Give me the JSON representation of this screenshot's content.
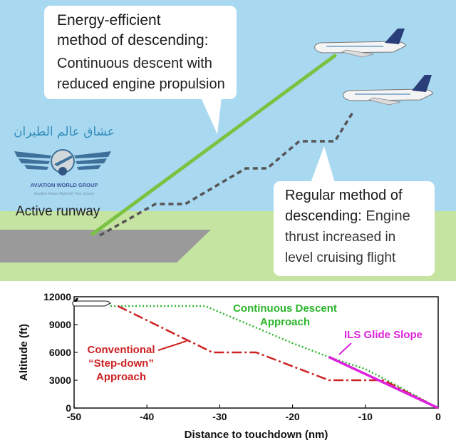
{
  "illustration": {
    "callout_efficient": {
      "line1": "Energy-efficient",
      "line2": "method of descending:",
      "line3": "Continuous descent with",
      "line4": "reduced engine propulsion"
    },
    "callout_regular": {
      "line1": "Regular method of",
      "line2_bold": "descending:",
      "line2_rest": " Engine",
      "line3": "thrust increased in",
      "line4": "level cruising flight"
    },
    "runway_label": "Active runway",
    "watermark": {
      "arabic": "عشاق عالم الطيران",
      "group": "AVIATION WORLD GROUP",
      "tagline": "Aviation Means Right On Your Screen"
    },
    "colors": {
      "sky": "#a9d8f1",
      "grass": "#c5e3a1",
      "runway": "#9a9a9a",
      "efficient_line": "#7cc242",
      "regular_line": "#555555"
    }
  },
  "chart_data": {
    "type": "line",
    "xlabel": "Distance to touchdown (nm)",
    "ylabel": "Altitude (ft)",
    "xlim": [
      -50,
      0
    ],
    "ylim": [
      0,
      12000
    ],
    "xticks": [
      {
        "v": -50,
        "label": "-50"
      },
      {
        "v": -40,
        "label": "-40"
      },
      {
        "v": -30,
        "label": "-30"
      },
      {
        "v": -20,
        "label": "-20"
      },
      {
        "v": -10,
        "label": "-10"
      },
      {
        "v": 0,
        "label": "0"
      }
    ],
    "yticks": [
      {
        "v": 0,
        "label": "0"
      },
      {
        "v": 3000,
        "label": "3000"
      },
      {
        "v": 6000,
        "label": "6000"
      },
      {
        "v": 9000,
        "label": "9000"
      },
      {
        "v": 12000,
        "label": "12000"
      }
    ],
    "series": [
      {
        "name": "Continuous Descent Approach",
        "label_line1": "Continuous Descent",
        "label_line2": "Approach",
        "color": "#2bb52b",
        "style": "dotted",
        "x": [
          -45,
          -32,
          -20,
          -15,
          -10,
          -7.5,
          0
        ],
        "y": [
          11000,
          11000,
          7000,
          5500,
          4200,
          3200,
          0
        ]
      },
      {
        "name": "Conventional \"Step-down\" Approach",
        "label_line1": "Conventional",
        "label_line2": "“Step-down”",
        "label_line3": "Approach",
        "color": "#cc2222",
        "style": "dashdot",
        "x": [
          -44,
          -31,
          -27,
          -25,
          -15,
          -8,
          -7.5,
          0
        ],
        "y": [
          11000,
          6000,
          6000,
          6000,
          3000,
          3000,
          3000,
          0
        ]
      },
      {
        "name": "ILS Glide Slope",
        "label_line1": "ILS Glide Slope",
        "color": "#dd22dd",
        "style": "solid",
        "x": [
          -15,
          0
        ],
        "y": [
          5500,
          0
        ]
      }
    ]
  }
}
